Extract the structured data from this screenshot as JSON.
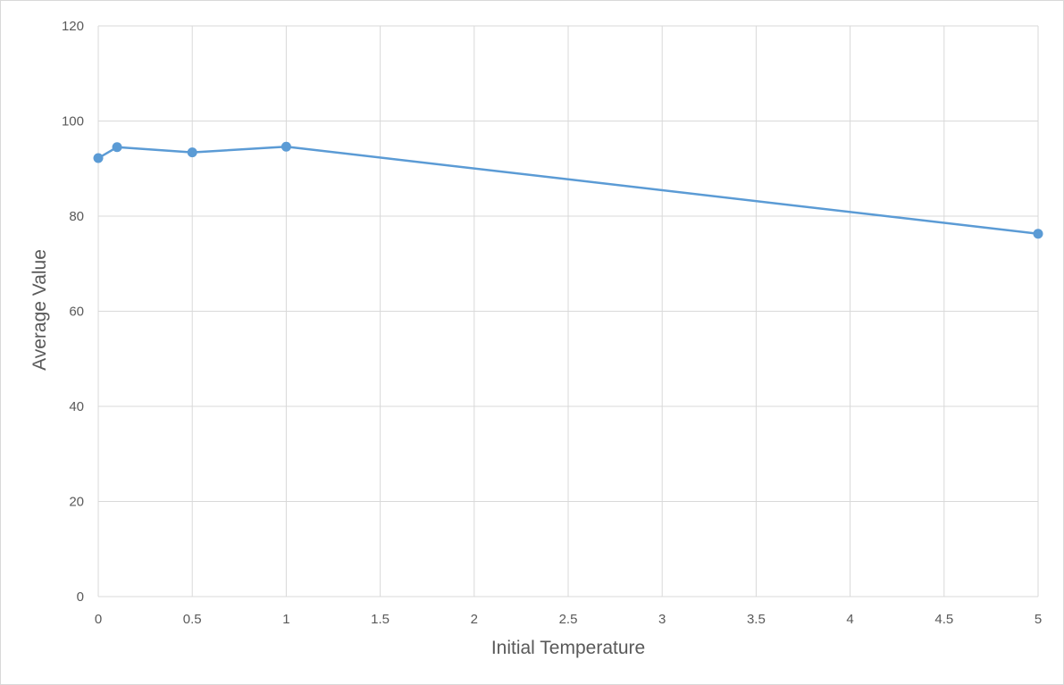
{
  "chart_data": {
    "type": "scatter",
    "mode": "lines+markers",
    "xlabel": "Initial Temperature",
    "ylabel": "Average Value",
    "xlim": [
      0,
      5
    ],
    "ylim": [
      0,
      120
    ],
    "x_ticks": [
      "0",
      "0.5",
      "1",
      "1.5",
      "2",
      "2.5",
      "3",
      "3.5",
      "4",
      "4.5",
      "5"
    ],
    "y_ticks": [
      "0",
      "20",
      "40",
      "60",
      "80",
      "100",
      "120"
    ],
    "grid": true,
    "legend": "none",
    "series": [
      {
        "color": "#5b9bd5",
        "x": [
          0,
          0.1,
          0.5,
          1,
          5
        ],
        "y": [
          92.2,
          94.5,
          93.4,
          94.6,
          76.3
        ]
      }
    ]
  }
}
